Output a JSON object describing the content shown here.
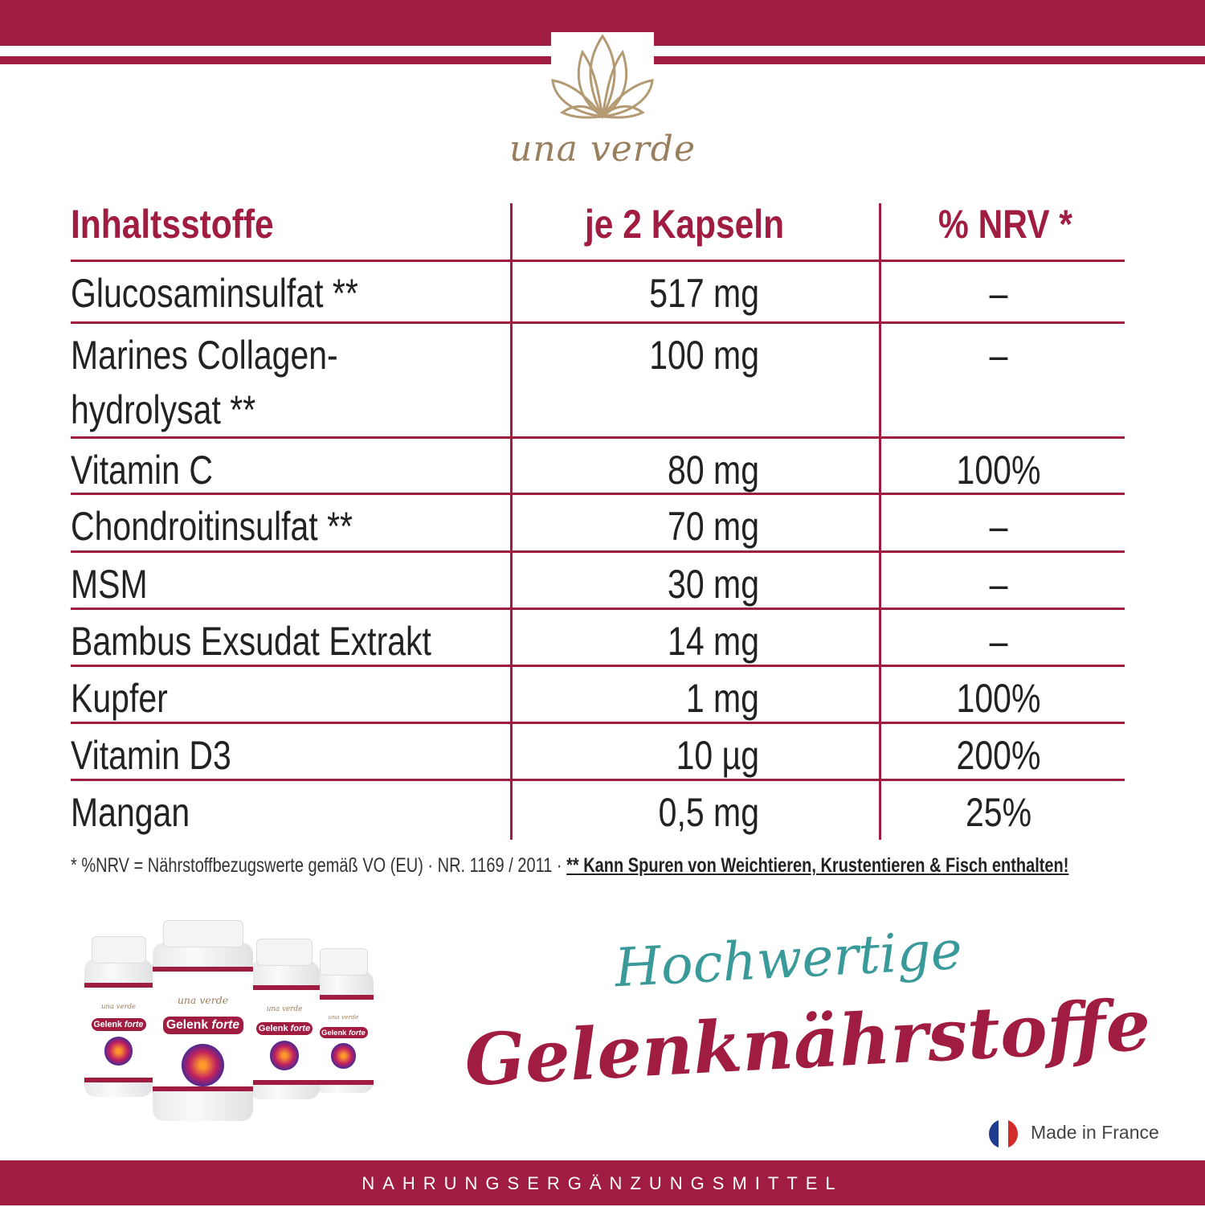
{
  "brand": {
    "name": "una verde",
    "color": "#a01c40",
    "gold": "#9a7f5f"
  },
  "table": {
    "headers": [
      "Inhaltsstoffe",
      "je 2 Kapseln",
      "% NRV *"
    ],
    "rows": [
      {
        "name": "Glucosaminsulfat **",
        "amount": "517 mg",
        "nrv": "–"
      },
      {
        "name": "Marines Collagen-",
        "name2": "hydrolysat **",
        "amount": "100 mg",
        "nrv": "–"
      },
      {
        "name": "Vitamin C",
        "amount": "80 mg",
        "nrv": "100%"
      },
      {
        "name": "Chondroitinsulfat **",
        "amount": "70 mg",
        "nrv": "–"
      },
      {
        "name": "MSM",
        "amount": "30 mg",
        "nrv": "–"
      },
      {
        "name": "Bambus Exsudat Extrakt",
        "amount": "14 mg",
        "nrv": "–"
      },
      {
        "name": "Kupfer",
        "amount": "1 mg",
        "nrv": "100%"
      },
      {
        "name": "Vitamin D3",
        "amount": "10 µg",
        "nrv": "200%"
      },
      {
        "name": "Mangan",
        "amount": "0,5 mg",
        "nrv": "25%"
      }
    ]
  },
  "footnote": {
    "text": "* %NRV = Nährstoffbezugswerte gemäß VO (EU) · NR. 1169 / 2011 · ",
    "warning": "** Kann Spuren von Weichtieren, Krustentieren & Fisch enthalten!"
  },
  "product": {
    "brand": "una verde",
    "name": "Gelenk",
    "name_suffix": "forte"
  },
  "headline": {
    "line1": "Hochwertige",
    "line2": "Gelenknährstoffe"
  },
  "origin": {
    "text": "Made in France",
    "icon": "french-flag-icon"
  },
  "footer": {
    "text": "NAHRUNGSERGÄNZUNGSMITTEL"
  }
}
